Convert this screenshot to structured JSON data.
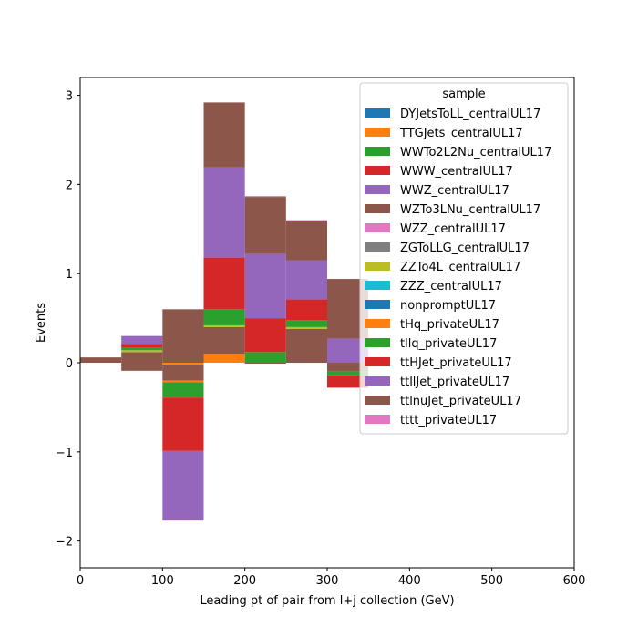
{
  "chart_data": {
    "type": "bar",
    "stacked": true,
    "xlabel": "Leading pt of pair from l+j collection (GeV)",
    "ylabel": "Events",
    "xlim": [
      0,
      600
    ],
    "ylim": [
      -2.3,
      3.2
    ],
    "xticks": [
      0,
      100,
      200,
      300,
      400,
      500,
      600
    ],
    "yticks": [
      -2,
      -1,
      0,
      1,
      2,
      3
    ],
    "grid": false,
    "legend": {
      "title": "sample",
      "placement": "upper-right"
    },
    "bin_edges": [
      0,
      50,
      100,
      150,
      200,
      250,
      300,
      350,
      400,
      450,
      500,
      550,
      600,
      650
    ],
    "series": [
      {
        "name": "DYJetsToLL_centralUL17",
        "color": "#1f77b4",
        "values": [
          0,
          0,
          0,
          0,
          0,
          0,
          0,
          0,
          0,
          0,
          0,
          0,
          0
        ]
      },
      {
        "name": "TTGJets_centralUL17",
        "color": "#ff7f0e",
        "values": [
          0,
          0,
          -0.02,
          0.1,
          0,
          0,
          0,
          0,
          0,
          0,
          0,
          0,
          0
        ]
      },
      {
        "name": "WWTo2L2Nu_centralUL17",
        "color": "#2ca02c",
        "values": [
          0,
          0,
          0,
          0,
          0,
          0,
          0,
          0,
          0,
          0,
          0,
          0,
          0
        ]
      },
      {
        "name": "WWW_centralUL17",
        "color": "#d62728",
        "values": [
          0,
          0,
          0,
          0,
          0,
          0,
          0,
          0,
          0,
          0,
          0,
          0,
          0
        ]
      },
      {
        "name": "WWZ_centralUL17",
        "color": "#9467bd",
        "values": [
          0,
          0,
          0,
          0,
          0,
          0,
          0,
          0,
          0,
          0,
          0,
          0,
          0
        ]
      },
      {
        "name": "WZTo3LNu_centralUL17",
        "color": "#8c564b",
        "values": [
          0,
          0.12,
          -0.18,
          0.3,
          -0.01,
          0.38,
          -0.1,
          0,
          0,
          0,
          0,
          0,
          0
        ]
      },
      {
        "name": "WZZ_centralUL17",
        "color": "#e377c2",
        "values": [
          0,
          0,
          0,
          0,
          0,
          0,
          0,
          0,
          0,
          0,
          0,
          0,
          0
        ]
      },
      {
        "name": "ZGToLLG_centralUL17",
        "color": "#7f7f7f",
        "values": [
          0,
          0,
          0,
          0,
          0,
          0,
          0,
          0,
          0,
          0,
          0,
          0,
          0
        ]
      },
      {
        "name": "ZZTo4L_centralUL17",
        "color": "#bcbd22",
        "values": [
          0,
          0.02,
          0,
          0.02,
          0,
          0.02,
          0,
          0,
          0,
          0,
          0,
          0,
          0
        ]
      },
      {
        "name": "ZZZ_centralUL17",
        "color": "#17becf",
        "values": [
          0,
          0,
          0,
          0,
          0,
          0,
          0,
          0,
          0,
          0,
          0,
          0,
          0
        ]
      },
      {
        "name": "nonpromptUL17",
        "color": "#1f77b4",
        "values": [
          0,
          0,
          0,
          0,
          0,
          0,
          0,
          0,
          0,
          0,
          0,
          0,
          0
        ]
      },
      {
        "name": "tHq_privateUL17",
        "color": "#ff7f0e",
        "values": [
          0,
          0,
          -0.02,
          0,
          0,
          0,
          0,
          0,
          0,
          0,
          0,
          0,
          0
        ]
      },
      {
        "name": "tllq_privateUL17",
        "color": "#2ca02c",
        "values": [
          0,
          0.03,
          -0.17,
          0.18,
          0.12,
          0.08,
          -0.04,
          0,
          0,
          0,
          0,
          0,
          0
        ]
      },
      {
        "name": "ttHJet_privateUL17",
        "color": "#d62728",
        "values": [
          0,
          0.04,
          -0.6,
          0.58,
          0.38,
          0.23,
          -0.14,
          0,
          0,
          0,
          0,
          0,
          0
        ]
      },
      {
        "name": "ttllJet_privateUL17",
        "color": "#9467bd",
        "values": [
          0,
          0.09,
          -0.78,
          1.01,
          0.72,
          0.44,
          0.27,
          0,
          0,
          0,
          0,
          0,
          0
        ]
      },
      {
        "name": "ttlnuJet_privateUL17",
        "color": "#8c564b",
        "values": [
          0.06,
          -0.09,
          0.6,
          0.73,
          0.64,
          0.44,
          0.67,
          0,
          0,
          0,
          0,
          0,
          0
        ]
      },
      {
        "name": "tttt_privateUL17",
        "color": "#e377c2",
        "values": [
          0,
          0,
          0,
          0,
          0.01,
          0.01,
          0,
          0,
          0,
          0,
          0,
          0,
          0
        ]
      }
    ]
  }
}
